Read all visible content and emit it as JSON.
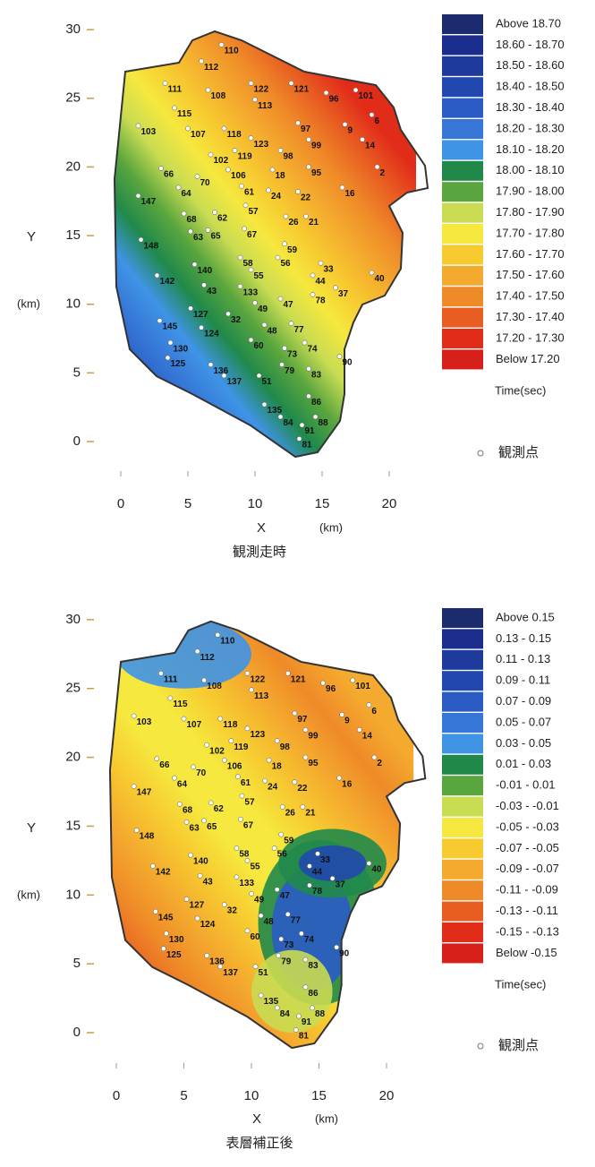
{
  "stations": [
    {
      "label": "110",
      "x": 7.5,
      "y": 28.9
    },
    {
      "label": "112",
      "x": 6.0,
      "y": 27.7
    },
    {
      "label": "111",
      "x": 3.3,
      "y": 26.1
    },
    {
      "label": "108",
      "x": 6.5,
      "y": 25.6
    },
    {
      "label": "113",
      "x": 10.0,
      "y": 24.9
    },
    {
      "label": "122",
      "x": 9.7,
      "y": 26.1
    },
    {
      "label": "121",
      "x": 12.7,
      "y": 26.1
    },
    {
      "label": "96",
      "x": 15.3,
      "y": 25.4
    },
    {
      "label": "101",
      "x": 17.5,
      "y": 25.6
    },
    {
      "label": "6",
      "x": 18.7,
      "y": 23.8
    },
    {
      "label": "115",
      "x": 4.0,
      "y": 24.3
    },
    {
      "label": "103",
      "x": 1.3,
      "y": 23.0
    },
    {
      "label": "107",
      "x": 5.0,
      "y": 22.8
    },
    {
      "label": "118",
      "x": 7.7,
      "y": 22.8
    },
    {
      "label": "97",
      "x": 13.2,
      "y": 23.2
    },
    {
      "label": "9",
      "x": 16.7,
      "y": 23.1
    },
    {
      "label": "14",
      "x": 18.0,
      "y": 22.0
    },
    {
      "label": "123",
      "x": 9.7,
      "y": 22.1
    },
    {
      "label": "119",
      "x": 8.5,
      "y": 21.2
    },
    {
      "label": "102",
      "x": 6.7,
      "y": 20.9
    },
    {
      "label": "98",
      "x": 11.9,
      "y": 21.2
    },
    {
      "label": "99",
      "x": 14.0,
      "y": 22.0
    },
    {
      "label": "66",
      "x": 3.0,
      "y": 19.9
    },
    {
      "label": "70",
      "x": 5.7,
      "y": 19.3
    },
    {
      "label": "106",
      "x": 8.0,
      "y": 19.8
    },
    {
      "label": "18",
      "x": 11.3,
      "y": 19.8
    },
    {
      "label": "95",
      "x": 14.0,
      "y": 20.0
    },
    {
      "label": "2",
      "x": 19.1,
      "y": 20.0
    },
    {
      "label": "147",
      "x": 1.3,
      "y": 17.9
    },
    {
      "label": "64",
      "x": 4.3,
      "y": 18.5
    },
    {
      "label": "61",
      "x": 9.0,
      "y": 18.6
    },
    {
      "label": "24",
      "x": 11.0,
      "y": 18.3
    },
    {
      "label": "22",
      "x": 13.2,
      "y": 18.2
    },
    {
      "label": "16",
      "x": 16.5,
      "y": 18.5
    },
    {
      "label": "68",
      "x": 4.7,
      "y": 16.6
    },
    {
      "label": "62",
      "x": 7.0,
      "y": 16.7
    },
    {
      "label": "57",
      "x": 9.3,
      "y": 17.2
    },
    {
      "label": "26",
      "x": 12.3,
      "y": 16.4
    },
    {
      "label": "21",
      "x": 13.8,
      "y": 16.4
    },
    {
      "label": "148",
      "x": 1.5,
      "y": 14.7
    },
    {
      "label": "63",
      "x": 5.2,
      "y": 15.3
    },
    {
      "label": "65",
      "x": 6.5,
      "y": 15.4
    },
    {
      "label": "67",
      "x": 9.2,
      "y": 15.5
    },
    {
      "label": "59",
      "x": 12.2,
      "y": 14.4
    },
    {
      "label": "58",
      "x": 8.9,
      "y": 13.4
    },
    {
      "label": "56",
      "x": 11.7,
      "y": 13.4
    },
    {
      "label": "140",
      "x": 5.5,
      "y": 12.9
    },
    {
      "label": "44",
      "x": 14.3,
      "y": 12.1
    },
    {
      "label": "33",
      "x": 14.9,
      "y": 13.0
    },
    {
      "label": "40",
      "x": 18.7,
      "y": 12.3
    },
    {
      "label": "55",
      "x": 9.7,
      "y": 12.5
    },
    {
      "label": "142",
      "x": 2.7,
      "y": 12.1
    },
    {
      "label": "43",
      "x": 6.2,
      "y": 11.4
    },
    {
      "label": "133",
      "x": 8.9,
      "y": 11.3
    },
    {
      "label": "78",
      "x": 14.3,
      "y": 10.7
    },
    {
      "label": "37",
      "x": 16.0,
      "y": 11.2
    },
    {
      "label": "49",
      "x": 10.0,
      "y": 10.1
    },
    {
      "label": "47",
      "x": 11.9,
      "y": 10.4
    },
    {
      "label": "145",
      "x": 2.9,
      "y": 8.8
    },
    {
      "label": "127",
      "x": 5.2,
      "y": 9.7
    },
    {
      "label": "32",
      "x": 8.0,
      "y": 9.3
    },
    {
      "label": "48",
      "x": 10.7,
      "y": 8.5
    },
    {
      "label": "77",
      "x": 12.7,
      "y": 8.6
    },
    {
      "label": "130",
      "x": 3.7,
      "y": 7.2
    },
    {
      "label": "124",
      "x": 6.0,
      "y": 8.3
    },
    {
      "label": "60",
      "x": 9.7,
      "y": 7.4
    },
    {
      "label": "73",
      "x": 12.2,
      "y": 6.8
    },
    {
      "label": "74",
      "x": 13.7,
      "y": 7.2
    },
    {
      "label": "125",
      "x": 3.5,
      "y": 6.1
    },
    {
      "label": "79",
      "x": 12.0,
      "y": 5.6
    },
    {
      "label": "83",
      "x": 14.0,
      "y": 5.3
    },
    {
      "label": "90",
      "x": 16.3,
      "y": 6.2
    },
    {
      "label": "136",
      "x": 6.7,
      "y": 5.6
    },
    {
      "label": "137",
      "x": 7.7,
      "y": 4.8
    },
    {
      "label": "51",
      "x": 10.3,
      "y": 4.8
    },
    {
      "label": "86",
      "x": 14.0,
      "y": 3.3
    },
    {
      "label": "135",
      "x": 10.7,
      "y": 2.7
    },
    {
      "label": "84",
      "x": 11.9,
      "y": 1.8
    },
    {
      "label": "88",
      "x": 14.5,
      "y": 1.8
    },
    {
      "label": "91",
      "x": 13.5,
      "y": 1.2
    },
    {
      "label": "81",
      "x": 13.3,
      "y": 0.2
    }
  ],
  "maps": [
    {
      "caption": "観測走時",
      "x_label": "X",
      "x_unit": "(km)",
      "y_label": "Y",
      "y_unit": "(km)",
      "xticks": [
        0,
        5,
        10,
        15,
        20
      ],
      "yticks": [
        0,
        5,
        10,
        15,
        20,
        25,
        30
      ],
      "legend": {
        "title": "Time(sec)",
        "station_note": "観測点",
        "items": [
          {
            "label": "Above  18.70",
            "color": "#1c2a6e"
          },
          {
            "label": "18.60 - 18.70",
            "color": "#1a2c8c"
          },
          {
            "label": "18.50 - 18.60",
            "color": "#1e3a9c"
          },
          {
            "label": "18.40 - 18.50",
            "color": "#2148ae"
          },
          {
            "label": "18.30 - 18.40",
            "color": "#2a5cc4"
          },
          {
            "label": "18.20 - 18.30",
            "color": "#3576d6"
          },
          {
            "label": "18.10 - 18.20",
            "color": "#3f94e6"
          },
          {
            "label": "18.00 - 18.10",
            "color": "#20894a"
          },
          {
            "label": "17.90 - 18.00",
            "color": "#5aa63e"
          },
          {
            "label": "17.80 - 17.90",
            "color": "#c9dc52"
          },
          {
            "label": "17.70 - 17.80",
            "color": "#f6e83e"
          },
          {
            "label": "17.60 - 17.70",
            "color": "#f7ca30"
          },
          {
            "label": "17.50 - 17.60",
            "color": "#f4aa2e"
          },
          {
            "label": "17.40 - 17.50",
            "color": "#ef8a28"
          },
          {
            "label": "17.30 - 17.40",
            "color": "#e85e22"
          },
          {
            "label": "17.20 - 17.30",
            "color": "#e22c1a"
          },
          {
            "label": "Below  17.20",
            "color": "#d8201a"
          }
        ]
      }
    },
    {
      "caption": "表層補正後",
      "x_label": "X",
      "x_unit": "(km)",
      "y_label": "Y",
      "y_unit": "(km)",
      "xticks": [
        0,
        5,
        10,
        15,
        20
      ],
      "yticks": [
        0,
        5,
        10,
        15,
        20,
        25,
        30
      ],
      "legend": {
        "title": "Time(sec)",
        "station_note": "観測点",
        "items": [
          {
            "label": "Above  0.15",
            "color": "#1c2a6e"
          },
          {
            "label": "0.13 -  0.15",
            "color": "#1a2c8c"
          },
          {
            "label": "0.11 -  0.13",
            "color": "#1e3a9c"
          },
          {
            "label": "0.09 -  0.11",
            "color": "#2148ae"
          },
          {
            "label": "0.07 -  0.09",
            "color": "#2a5cc4"
          },
          {
            "label": "0.05 -  0.07",
            "color": "#3576d6"
          },
          {
            "label": "0.03 -  0.05",
            "color": "#3f94e6"
          },
          {
            "label": "0.01 -  0.03",
            "color": "#20894a"
          },
          {
            "label": "-0.01 -  0.01",
            "color": "#5aa63e"
          },
          {
            "label": "-0.03 - -0.01",
            "color": "#c9dc52"
          },
          {
            "label": "-0.05 - -0.03",
            "color": "#f6e83e"
          },
          {
            "label": "-0.07 - -0.05",
            "color": "#f7ca30"
          },
          {
            "label": "-0.09 - -0.07",
            "color": "#f4aa2e"
          },
          {
            "label": "-0.11 - -0.09",
            "color": "#ef8a28"
          },
          {
            "label": "-0.13 - -0.11",
            "color": "#e85e22"
          },
          {
            "label": "-0.15 - -0.13",
            "color": "#e22c1a"
          },
          {
            "label": "Below  -0.15",
            "color": "#d8201a"
          }
        ]
      }
    }
  ]
}
